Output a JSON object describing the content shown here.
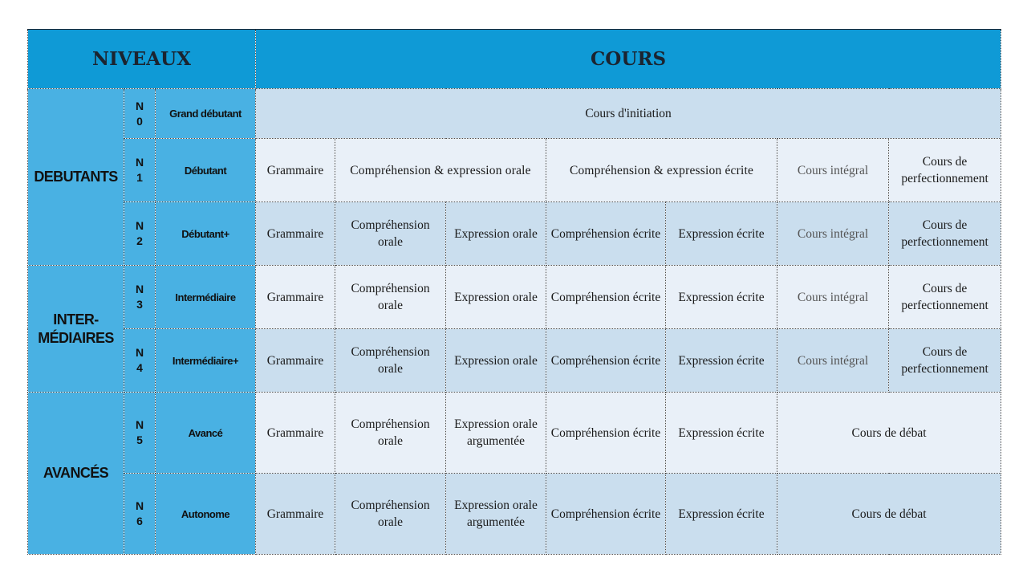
{
  "header": {
    "niveaux": "NIVEAUX",
    "cours": "COURS"
  },
  "groups": {
    "debutants": "DEBUTANTS",
    "intermediaires": "INTER-\nMÉDIAIRES",
    "avances": "AVANCÉS"
  },
  "levels": [
    {
      "code": "N\n0",
      "name": "Grand débutant"
    },
    {
      "code": "N\n1",
      "name": "Débutant"
    },
    {
      "code": "N\n2",
      "name": "Débutant+"
    },
    {
      "code": "N\n3",
      "name": "Intermédiaire"
    },
    {
      "code": "N\n4",
      "name": "Intermédiaire+"
    },
    {
      "code": "N\n5",
      "name": "Avancé"
    },
    {
      "code": "N\n6",
      "name": "Autonome"
    }
  ],
  "courses": {
    "initiation": "Cours d'initiation",
    "grammaire": "Grammaire",
    "comp_expr_orale": "Compréhension & expression orale",
    "comp_expr_ecrite": "Compréhension & expression écrite",
    "comp_orale": "Compréhension orale",
    "expr_orale": "Expression orale",
    "expr_orale_arg": "Expression orale argumentée",
    "comp_ecrite": "Compréhension écrite",
    "expr_ecrite": "Expression écrite",
    "integral": "Cours intégral",
    "perfectionnement": "Cours de perfectionnement",
    "debat": "Cours de débat"
  },
  "colors": {
    "header_bg": "#0f9ad6",
    "level_bg": "#49b1e3",
    "row_light": "#e9f0f8",
    "row_dark": "#cadeee"
  }
}
